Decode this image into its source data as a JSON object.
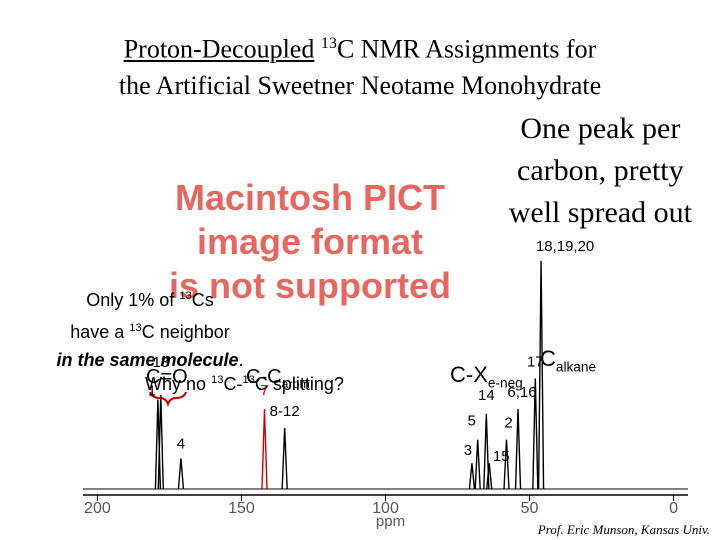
{
  "title": {
    "line1": [
      "Proton-Decoupled",
      " ",
      "13",
      "C NMR Assignments for"
    ],
    "line2": "the Artificial Sweetner Neotame Monohydrate"
  },
  "note_right": [
    "One peak per",
    "carbon, pretty",
    "well spread out"
  ],
  "placeholder": [
    "Macintosh PICT",
    "image format",
    "is not supported"
  ],
  "note_left": {
    "line1": [
      "Only 1% of ",
      "13",
      "Cs"
    ],
    "line2": [
      "have a ",
      "13",
      "C neighbor"
    ],
    "line3": [
      "in the same molecule",
      "."
    ],
    "line4": [
      "Why no ",
      "13",
      "C-",
      "13",
      "C splitting?"
    ]
  },
  "spectrum": {
    "xlabel": "ppm",
    "xlim": [
      205,
      -5
    ],
    "xticks": [
      200,
      150,
      100,
      50,
      0
    ],
    "groups": {
      "carbonyl": "C=O",
      "aromatic": [
        "C-C",
        "arom"
      ],
      "electroneg": [
        "C-X",
        "e-neg"
      ],
      "alkane": [
        "C",
        "alkane"
      ]
    },
    "peaks": [
      {
        "label": "1",
        "ppm": 179,
        "intensity": 38,
        "color": "#000000"
      },
      {
        "label": "13",
        "ppm": 178,
        "intensity": 40,
        "color": "#000000"
      },
      {
        "label": "4",
        "ppm": 171,
        "intensity": 13,
        "color": "#000000"
      },
      {
        "label": "7",
        "ppm": 142,
        "intensity": 34,
        "color": "#d00000"
      },
      {
        "label": "8-12",
        "ppm": 135,
        "intensity": 26,
        "color": "#000000"
      },
      {
        "label": "3",
        "ppm": 70,
        "intensity": 11,
        "color": "#000000"
      },
      {
        "label": "5",
        "ppm": 68,
        "intensity": 21,
        "color": "#000000"
      },
      {
        "label": "14",
        "ppm": 65,
        "intensity": 32,
        "color": "#000000"
      },
      {
        "label": "15",
        "ppm": 64,
        "intensity": 11,
        "color": "#000000"
      },
      {
        "label": "2",
        "ppm": 58,
        "intensity": 21,
        "color": "#000000"
      },
      {
        "label": "6,16",
        "ppm": 54,
        "intensity": 34,
        "color": "#000000"
      },
      {
        "label": "17",
        "ppm": 48,
        "intensity": 47,
        "color": "#000000"
      },
      {
        "label": "18,19,20",
        "ppm": 46,
        "intensity": 97,
        "color": "#000000"
      }
    ]
  },
  "credit": "Prof. Eric Munson, Kansas Univ."
}
